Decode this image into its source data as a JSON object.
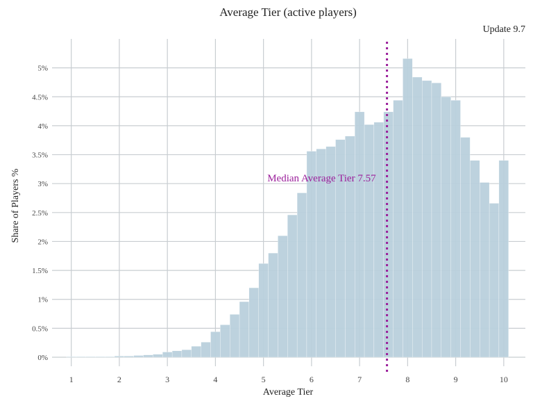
{
  "chart_data": {
    "type": "bar",
    "title": "Average Tier (active players)",
    "subtitle": "Update 9.7",
    "xlabel": "Average Tier",
    "ylabel": "Share of Players %",
    "xlim": [
      0.6,
      10.45
    ],
    "ylim": [
      0,
      5.5
    ],
    "bin_width": 0.2,
    "grid": true,
    "x_ticks": [
      1,
      2,
      3,
      4,
      5,
      6,
      7,
      8,
      9,
      10
    ],
    "x_tick_labels": [
      "1",
      "2",
      "3",
      "4",
      "5",
      "6",
      "7",
      "8",
      "9",
      "10"
    ],
    "y_ticks": [
      0,
      0.5,
      1,
      1.5,
      2,
      2.5,
      3,
      3.5,
      4,
      4.5,
      5
    ],
    "y_tick_labels": [
      "0%",
      "0.5%",
      "1%",
      "1.5%",
      "2%",
      "2.5%",
      "3%",
      "3.5%",
      "4%",
      "4.5%",
      "5%"
    ],
    "bars": [
      {
        "x": 1.0,
        "value": 0.01
      },
      {
        "x": 1.2,
        "value": 0.01
      },
      {
        "x": 1.4,
        "value": 0.01
      },
      {
        "x": 1.6,
        "value": 0.01
      },
      {
        "x": 1.8,
        "value": 0.01
      },
      {
        "x": 2.0,
        "value": 0.02
      },
      {
        "x": 2.2,
        "value": 0.02
      },
      {
        "x": 2.4,
        "value": 0.03
      },
      {
        "x": 2.6,
        "value": 0.04
      },
      {
        "x": 2.8,
        "value": 0.05
      },
      {
        "x": 3.0,
        "value": 0.09
      },
      {
        "x": 3.2,
        "value": 0.11
      },
      {
        "x": 3.4,
        "value": 0.13
      },
      {
        "x": 3.6,
        "value": 0.19
      },
      {
        "x": 3.8,
        "value": 0.26
      },
      {
        "x": 4.0,
        "value": 0.44
      },
      {
        "x": 4.2,
        "value": 0.56
      },
      {
        "x": 4.4,
        "value": 0.74
      },
      {
        "x": 4.6,
        "value": 0.96
      },
      {
        "x": 4.8,
        "value": 1.2
      },
      {
        "x": 5.0,
        "value": 1.62
      },
      {
        "x": 5.2,
        "value": 1.8
      },
      {
        "x": 5.4,
        "value": 2.1
      },
      {
        "x": 5.6,
        "value": 2.46
      },
      {
        "x": 5.8,
        "value": 2.84
      },
      {
        "x": 6.0,
        "value": 3.56
      },
      {
        "x": 6.2,
        "value": 3.6
      },
      {
        "x": 6.4,
        "value": 3.64
      },
      {
        "x": 6.6,
        "value": 3.76
      },
      {
        "x": 6.8,
        "value": 3.82
      },
      {
        "x": 7.0,
        "value": 4.24
      },
      {
        "x": 7.2,
        "value": 4.02
      },
      {
        "x": 7.4,
        "value": 4.06
      },
      {
        "x": 7.6,
        "value": 4.24
      },
      {
        "x": 7.8,
        "value": 4.44
      },
      {
        "x": 8.0,
        "value": 5.16
      },
      {
        "x": 8.2,
        "value": 4.84
      },
      {
        "x": 8.4,
        "value": 4.78
      },
      {
        "x": 8.6,
        "value": 4.74
      },
      {
        "x": 8.8,
        "value": 4.5
      },
      {
        "x": 9.0,
        "value": 4.44
      },
      {
        "x": 9.2,
        "value": 3.8
      },
      {
        "x": 9.4,
        "value": 3.4
      },
      {
        "x": 9.6,
        "value": 3.02
      },
      {
        "x": 9.8,
        "value": 2.66
      },
      {
        "x": 10.0,
        "value": 3.4
      }
    ],
    "median": {
      "value": 7.57,
      "label": "Median Average Tier 7.57"
    },
    "colors": {
      "bar": "#b9d0dc",
      "grid": "#c8cdd1",
      "median": "#9b1f9b",
      "text": "#222222",
      "tick_text": "#444444"
    }
  }
}
